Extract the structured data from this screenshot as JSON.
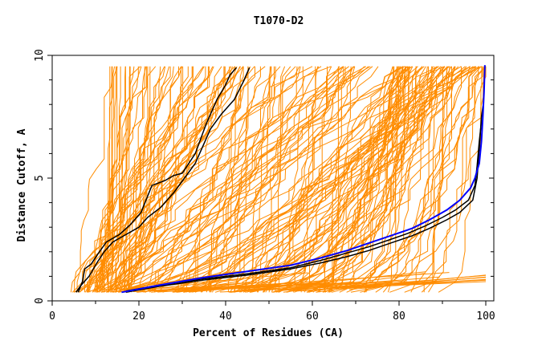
{
  "chart_data": {
    "type": "line",
    "title": "T1070-D2",
    "xlabel": "Percent of Residues (CA)",
    "ylabel": "Distance Cutoff, A",
    "xlim": [
      0,
      100
    ],
    "ylim": [
      0,
      10
    ],
    "x_ticks": [
      "0",
      "20",
      "40",
      "60",
      "80",
      "100"
    ],
    "y_ticks": [
      "0",
      "5",
      "10"
    ],
    "grid": false,
    "legend": "none",
    "colors": {
      "orange": "#ff8c00",
      "black": "#000000",
      "blue": "#0000ff",
      "axis": "#000000"
    },
    "series": [
      {
        "color": "black",
        "x": [
          6,
          7,
          7.5,
          9,
          10.5,
          12.5,
          15.5,
          18,
          20.5,
          23,
          26,
          28,
          30,
          33,
          35.5,
          38,
          40,
          41,
          42.5
        ],
        "y": [
          0.35,
          0.8,
          1.3,
          1.5,
          1.9,
          2.4,
          2.7,
          3.1,
          3.6,
          4.7,
          4.9,
          5.1,
          5.2,
          6.0,
          7.2,
          8.2,
          8.8,
          9.2,
          9.5
        ]
      },
      {
        "color": "black",
        "x": [
          5.5,
          6.5,
          7.5,
          8.5,
          9.5,
          10.5,
          12,
          14,
          17,
          20,
          22,
          25,
          28,
          30.5,
          33,
          35,
          36.5,
          39,
          42,
          44,
          45.5
        ],
        "y": [
          0.35,
          0.6,
          0.8,
          1.0,
          1.3,
          1.6,
          2.0,
          2.4,
          2.7,
          3.0,
          3.4,
          3.8,
          4.4,
          5.0,
          5.6,
          6.4,
          7.0,
          7.6,
          8.2,
          8.9,
          9.5
        ]
      },
      {
        "color": "black",
        "x": [
          17,
          25,
          35,
          45,
          55,
          62,
          68,
          73,
          78,
          83,
          87,
          91,
          94,
          97,
          98,
          98.5,
          99,
          99.5
        ],
        "y": [
          0.35,
          0.6,
          0.85,
          1.05,
          1.3,
          1.55,
          1.8,
          2.05,
          2.35,
          2.65,
          2.95,
          3.3,
          3.6,
          4.1,
          5.0,
          6.2,
          7.5,
          8.1
        ]
      },
      {
        "color": "black",
        "x": [
          17,
          25,
          35,
          45,
          55,
          62,
          68,
          73,
          78,
          82,
          86,
          90,
          93,
          96,
          97.5,
          98,
          98.5,
          99
        ],
        "y": [
          0.4,
          0.65,
          0.9,
          1.1,
          1.35,
          1.65,
          1.95,
          2.2,
          2.5,
          2.75,
          3.05,
          3.4,
          3.7,
          4.1,
          4.7,
          5.5,
          6.5,
          7.3
        ]
      },
      {
        "color": "blue",
        "x": [
          16,
          25,
          35,
          45,
          55,
          62,
          68,
          73,
          78,
          83,
          87,
          91,
          94,
          96.5,
          97.5,
          98.5,
          99,
          99.3,
          99.6,
          99.8
        ],
        "y": [
          0.35,
          0.65,
          0.95,
          1.2,
          1.45,
          1.75,
          2.05,
          2.35,
          2.65,
          2.95,
          3.3,
          3.7,
          4.1,
          4.6,
          5.0,
          5.6,
          6.5,
          7.4,
          8.5,
          9.6
        ]
      }
    ],
    "orange_band": {
      "color": "orange",
      "line_count": 190,
      "y_range": [
        0.35,
        9.55
      ],
      "note": "fan of model curves"
    }
  }
}
